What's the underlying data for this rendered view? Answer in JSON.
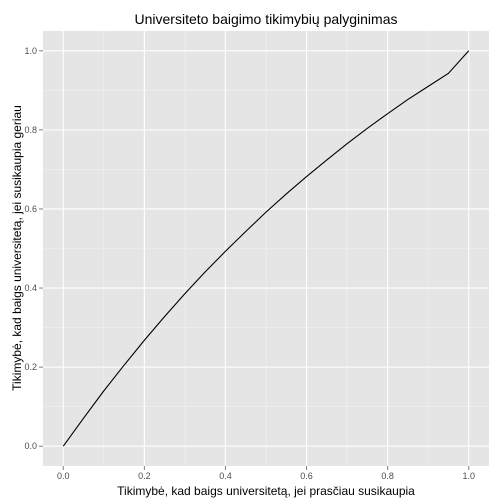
{
  "chart_data": {
    "type": "line",
    "title": "Universiteto baigimo tikimybių palyginimas",
    "xlabel": "Tikimybė, kad baigs universitetą, jei prasčiau susikaupia",
    "ylabel": "Tikimybė, kad baigs universitetą, jei susikaupia geriau",
    "xlim": [
      -0.05,
      1.05
    ],
    "ylim": [
      -0.05,
      1.05
    ],
    "x_ticks": [
      0.0,
      0.2,
      0.4,
      0.6,
      0.8,
      1.0
    ],
    "y_ticks": [
      0.0,
      0.2,
      0.4,
      0.6,
      0.8,
      1.0
    ],
    "x_tick_labels": [
      "0.0",
      "0.2",
      "0.4",
      "0.6",
      "0.8",
      "1.0"
    ],
    "y_tick_labels": [
      "0.0",
      "0.2",
      "0.4",
      "0.6",
      "0.8",
      "1.0"
    ],
    "grid": true,
    "colors": {
      "panel": "#e5e5e5",
      "grid": "#ffffff",
      "line": "#000000"
    },
    "series": [
      {
        "x": [
          0.0,
          0.05,
          0.1,
          0.15,
          0.2,
          0.25,
          0.3,
          0.35,
          0.4,
          0.45,
          0.5,
          0.55,
          0.6,
          0.65,
          0.7,
          0.75,
          0.8,
          0.85,
          0.9,
          0.95,
          1.0
        ],
        "y": [
          0.0,
          0.071,
          0.14,
          0.205,
          0.268,
          0.328,
          0.386,
          0.441,
          0.493,
          0.543,
          0.592,
          0.638,
          0.682,
          0.724,
          0.765,
          0.804,
          0.841,
          0.877,
          0.91,
          0.943,
          1.0
        ]
      }
    ]
  }
}
